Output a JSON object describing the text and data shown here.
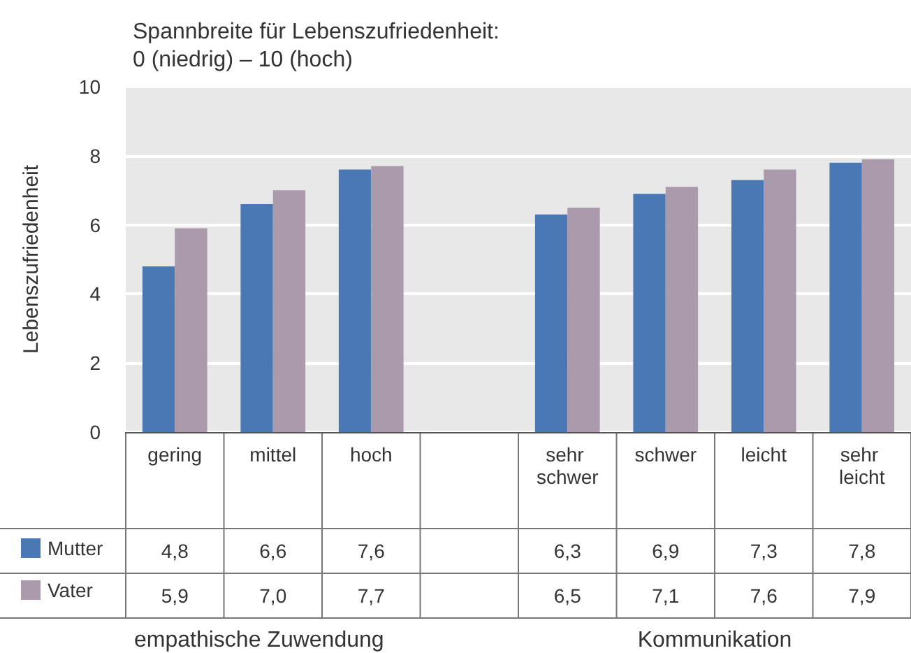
{
  "chart_data": {
    "type": "bar",
    "title": "Spannbreite für Lebenszufriedenheit:\n0 (niedrig) – 10 (hoch)",
    "ylabel": "Lebenszufriedenheit",
    "categories": [
      "gering",
      "mittel",
      "hoch",
      null,
      "sehr schwer",
      "schwer",
      "leicht",
      "sehr leicht"
    ],
    "series": [
      {
        "name": "Mutter",
        "color": "#4a78b5",
        "values": [
          4.8,
          6.6,
          7.6,
          null,
          6.3,
          6.9,
          7.3,
          7.8
        ],
        "value_labels": [
          "4,8",
          "6,6",
          "7,6",
          null,
          "6,3",
          "6,9",
          "7,3",
          "7,8"
        ]
      },
      {
        "name": "Vater",
        "color": "#ab9aac",
        "values": [
          5.9,
          7.0,
          7.7,
          null,
          6.5,
          7.1,
          7.6,
          7.9
        ],
        "value_labels": [
          "5,9",
          "7,0",
          "7,7",
          null,
          "6,5",
          "7,1",
          "7,6",
          "7,9"
        ]
      }
    ],
    "ylim": [
      0,
      10
    ],
    "yticks": [
      0,
      2,
      4,
      6,
      8,
      10
    ],
    "grid": "y",
    "legend": "bottom left",
    "annotations": [
      "empathische Zuwendung",
      "Kommunikation"
    ]
  }
}
